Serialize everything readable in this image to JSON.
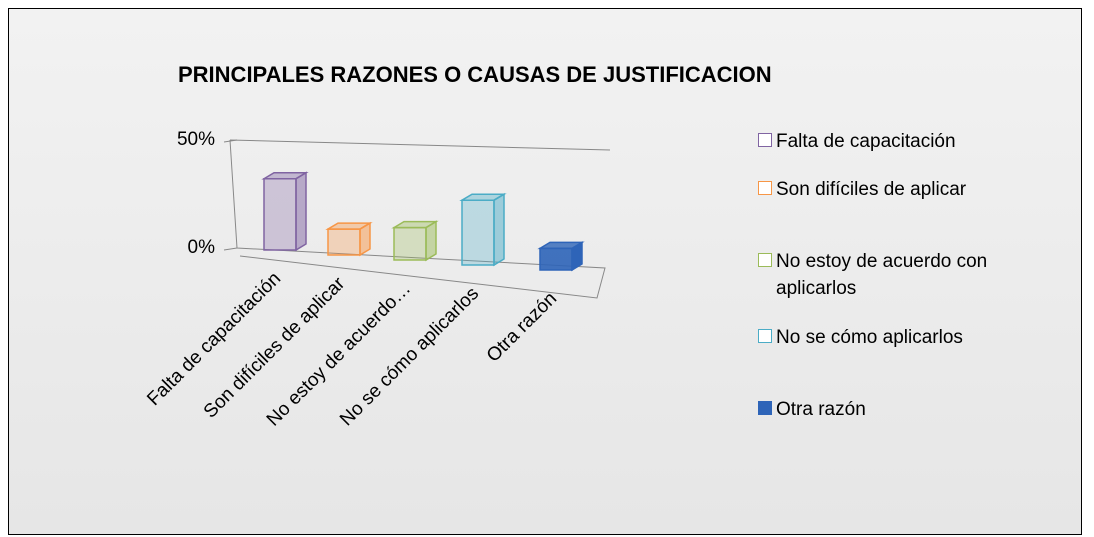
{
  "chart_data": {
    "type": "bar3d",
    "title": "PRINCIPALES RAZONES O CAUSAS DE JUSTIFICACION",
    "categories": [
      "Falta de capacitación",
      "Son difíciles de aplicar",
      "No estoy de acuerdo…",
      "No se cómo aplicarlos",
      "Otra razón"
    ],
    "values": [
      33,
      12,
      15,
      30,
      10
    ],
    "colors": [
      "#8064a2",
      "#f79646",
      "#9bbb59",
      "#4bacc6",
      "#2e64b8"
    ],
    "legend": [
      "Falta de capacitación",
      "Son difíciles de aplicar",
      "No estoy de acuerdo con aplicarlos",
      "No se cómo aplicarlos",
      "Otra razón"
    ],
    "ylim": [
      0,
      50
    ],
    "yticks": [
      {
        "value": 0,
        "label": "0%"
      },
      {
        "value": 50,
        "label": "50%"
      }
    ]
  }
}
